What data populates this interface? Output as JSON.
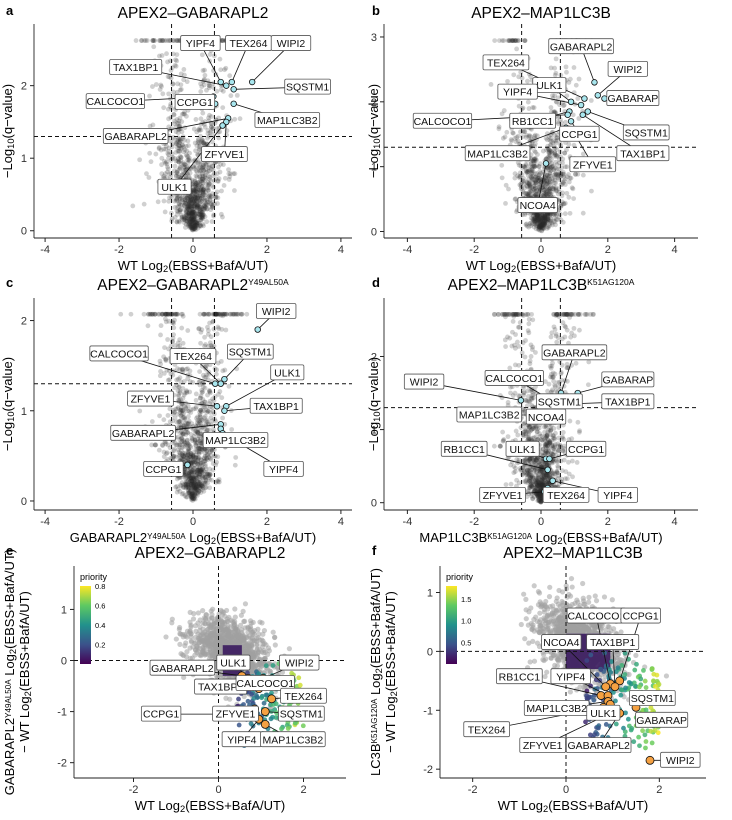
{
  "figure": {
    "panels": [
      {
        "letter": "a",
        "title": "APEX2–GABARAPL2",
        "title_sup": "",
        "xlabel_parts": [
          "WT Log",
          "2",
          "(EBSS+BafA/UT)"
        ],
        "ylabel_parts": [
          "−Log",
          "10",
          "(q−value)"
        ]
      },
      {
        "letter": "b",
        "title": "APEX2–MAP1LC3B",
        "title_sup": "",
        "xlabel_parts": [
          "WT Log",
          "2",
          "(EBSS+BafA/UT)"
        ],
        "ylabel_parts": [
          "−Log",
          "10",
          "(q−value)"
        ]
      },
      {
        "letter": "c",
        "title": "APEX2–GABARAPL2",
        "title_sup": "Y49AL50A",
        "xlabel_parts": [
          "GABARAPL2",
          "Y49AL50A",
          " Log",
          "2",
          "(EBSS+BafA/UT)"
        ],
        "ylabel_parts": [
          "−Log",
          "10",
          "(q−value)"
        ]
      },
      {
        "letter": "d",
        "title": "APEX2–MAP1LC3B",
        "title_sup": "K51AG120A",
        "xlabel_parts": [
          "MAP1LC3B",
          "K51AG120A",
          " Log",
          "2",
          "(EBSS+BafA/UT)"
        ],
        "ylabel_parts": [
          "−Log",
          "10",
          "(q−value)"
        ]
      },
      {
        "letter": "e",
        "title": "APEX2–GABARAPL2",
        "title_sup": "",
        "xlabel_parts": [
          "WT Log",
          "2",
          "(EBSS+BafA/UT)"
        ],
        "ylabel_line1": [
          "GABARAPL2",
          "Y49AL50A",
          " Log",
          "2",
          "(EBSS+BafA/UT)"
        ],
        "ylabel_line2": [
          "− WT Log",
          "2",
          "(EBSS+BafA/UT)"
        ],
        "legend_title": "priority",
        "legend_ticks": [
          "0.8",
          "0.6",
          "0.4",
          "0.2"
        ]
      },
      {
        "letter": "f",
        "title": "APEX2–MAP1LC3B",
        "title_sup": "",
        "xlabel_parts": [
          "WT Log",
          "2",
          "(EBSS+BafA/UT)"
        ],
        "ylabel_line1": [
          "LC3B",
          "K51AG120A",
          " Log",
          "2",
          "(EBSS+BafA/UT)"
        ],
        "ylabel_line2": [
          "− WT Log",
          "2",
          "(EBSS+BafA/UT)"
        ],
        "legend_title": "priority",
        "legend_ticks": [
          "1.5",
          "1.0",
          "0.5"
        ]
      }
    ]
  },
  "chart_data": [
    {
      "panel": "a",
      "type": "scatter",
      "xlim": [
        -4.3,
        4.3
      ],
      "ylim": [
        -0.1,
        2.85
      ],
      "x_ticks": [
        "-4",
        "-2",
        "0",
        "2",
        "4"
      ],
      "x_tick_values": [
        -4,
        -2,
        0,
        2,
        4
      ],
      "y_ticks": [
        "0",
        "1",
        "2"
      ],
      "y_tick_values": [
        0,
        1,
        2
      ],
      "h_line": 1.3,
      "v_lines": [
        -0.58,
        0.58
      ],
      "cloud_seed": 11,
      "highlighted": [
        {
          "name": "YIPF4",
          "x": 0.75,
          "y": 2.05,
          "lx": 0.2,
          "ly": 2.58
        },
        {
          "name": "TEX264",
          "x": 1.05,
          "y": 2.05,
          "lx": 1.5,
          "ly": 2.58
        },
        {
          "name": "WIPI2",
          "x": 1.6,
          "y": 2.05,
          "lx": 2.65,
          "ly": 2.58
        },
        {
          "name": "TAX1BP1",
          "x": 0.9,
          "y": 2.0,
          "lx": -1.55,
          "ly": 2.25
        },
        {
          "name": "SQSTM1",
          "x": 1.1,
          "y": 1.95,
          "lx": 3.1,
          "ly": 1.98
        },
        {
          "name": "CALCOCO1",
          "x": 0.55,
          "y": 1.85,
          "lx": -2.1,
          "ly": 1.78
        },
        {
          "name": "CCPG1",
          "x": 0.6,
          "y": 1.75,
          "lx": 0.05,
          "ly": 1.77
        },
        {
          "name": "MAP1LC3B2",
          "x": 1.1,
          "y": 1.75,
          "lx": 2.55,
          "ly": 1.52
        },
        {
          "name": "GABARAPL2",
          "x": 0.95,
          "y": 1.55,
          "lx": -1.55,
          "ly": 1.3
        },
        {
          "name": "ZFYVE1",
          "x": 0.9,
          "y": 1.5,
          "lx": 0.85,
          "ly": 1.05
        },
        {
          "name": "ULK1",
          "x": 0.8,
          "y": 1.45,
          "lx": -0.5,
          "ly": 0.6
        }
      ]
    },
    {
      "panel": "b",
      "type": "scatter",
      "xlim": [
        -4.7,
        4.7
      ],
      "ylim": [
        -0.1,
        3.2
      ],
      "x_ticks": [
        "-4",
        "-2",
        "0",
        "2",
        "4"
      ],
      "x_tick_values": [
        -4,
        -2,
        0,
        2,
        4
      ],
      "y_ticks": [
        "0",
        "1",
        "2",
        "3"
      ],
      "y_tick_values": [
        0,
        1,
        2,
        3
      ],
      "h_line": 1.3,
      "v_lines": [
        -0.58,
        0.58
      ],
      "cloud_seed": 23,
      "highlighted": [
        {
          "name": "GABARAPL2",
          "x": 1.6,
          "y": 2.3,
          "lx": 1.2,
          "ly": 2.85
        },
        {
          "name": "TEX264",
          "x": 1.3,
          "y": 2.05,
          "lx": -1.05,
          "ly": 2.6
        },
        {
          "name": "WIPI2",
          "x": 1.7,
          "y": 2.1,
          "lx": 2.6,
          "ly": 2.5
        },
        {
          "name": "ULK1",
          "x": 0.9,
          "y": 2.0,
          "lx": 0.25,
          "ly": 2.25
        },
        {
          "name": "YIPF4",
          "x": 1.2,
          "y": 1.95,
          "lx": -0.7,
          "ly": 2.15
        },
        {
          "name": "GABARAP",
          "x": 1.9,
          "y": 2.05,
          "lx": 2.75,
          "ly": 2.05
        },
        {
          "name": "RB1CC1",
          "x": 0.85,
          "y": 1.85,
          "lx": -0.25,
          "ly": 1.7
        },
        {
          "name": "CALCOCO1",
          "x": 0.8,
          "y": 1.8,
          "lx": -2.95,
          "ly": 1.7
        },
        {
          "name": "SQSTM1",
          "x": 1.4,
          "y": 1.85,
          "lx": 3.15,
          "ly": 1.52
        },
        {
          "name": "CCPG1",
          "x": 0.9,
          "y": 1.7,
          "lx": 1.15,
          "ly": 1.5
        },
        {
          "name": "TAX1BP1",
          "x": 1.25,
          "y": 1.8,
          "lx": 3.05,
          "ly": 1.2
        },
        {
          "name": "MAP1LC3B2",
          "x": 0.75,
          "y": 1.6,
          "lx": -1.3,
          "ly": 1.2
        },
        {
          "name": "ZFYVE1",
          "x": 0.95,
          "y": 1.55,
          "lx": 1.55,
          "ly": 1.03
        },
        {
          "name": "NCOA4",
          "x": 0.15,
          "y": 1.05,
          "lx": -0.1,
          "ly": 0.4
        }
      ]
    },
    {
      "panel": "c",
      "type": "scatter",
      "xlim": [
        -4.3,
        4.3
      ],
      "ylim": [
        -0.1,
        2.25
      ],
      "x_ticks": [
        "-4",
        "-2",
        "0",
        "2",
        "4"
      ],
      "x_tick_values": [
        -4,
        -2,
        0,
        2,
        4
      ],
      "y_ticks": [
        "0",
        "1",
        "2"
      ],
      "y_tick_values": [
        0,
        1,
        2
      ],
      "h_line": 1.3,
      "v_lines": [
        -0.58,
        0.58
      ],
      "cloud_seed": 37,
      "highlighted": [
        {
          "name": "WIPI2",
          "x": 1.75,
          "y": 1.9,
          "lx": 2.25,
          "ly": 2.1
        },
        {
          "name": "CALCOCO1",
          "x": 0.6,
          "y": 1.3,
          "lx": -2.0,
          "ly": 1.63
        },
        {
          "name": "TEX264",
          "x": 0.75,
          "y": 1.3,
          "lx": 0.0,
          "ly": 1.6
        },
        {
          "name": "SQSTM1",
          "x": 0.85,
          "y": 1.35,
          "lx": 1.55,
          "ly": 1.65
        },
        {
          "name": "ULK1",
          "x": 0.9,
          "y": 1.05,
          "lx": 2.55,
          "ly": 1.42
        },
        {
          "name": "ZFYVE1",
          "x": 0.65,
          "y": 1.05,
          "lx": -1.15,
          "ly": 1.13
        },
        {
          "name": "TAX1BP1",
          "x": 0.85,
          "y": 1.0,
          "lx": 2.25,
          "ly": 1.05
        },
        {
          "name": "GABARAPL2",
          "x": 0.75,
          "y": 0.85,
          "lx": -1.35,
          "ly": 0.75
        },
        {
          "name": "MAP1LC3B2",
          "x": 0.75,
          "y": 0.8,
          "lx": 1.15,
          "ly": 0.67
        },
        {
          "name": "CCPG1",
          "x": -0.15,
          "y": 0.4,
          "lx": -0.8,
          "ly": 0.35
        },
        {
          "name": "YIPF4",
          "x": 0.8,
          "y": 0.75,
          "lx": 2.45,
          "ly": 0.35
        }
      ]
    },
    {
      "panel": "d",
      "type": "scatter",
      "xlim": [
        -4.7,
        4.7
      ],
      "ylim": [
        -0.1,
        2.8
      ],
      "x_ticks": [
        "-4",
        "-2",
        "0",
        "2",
        "4"
      ],
      "x_tick_values": [
        -4,
        -2,
        0,
        2,
        4
      ],
      "y_ticks": [
        "0",
        "1",
        "2"
      ],
      "y_tick_values": [
        0,
        1,
        2
      ],
      "h_line": 1.3,
      "v_lines": [
        -0.58,
        0.58
      ],
      "cloud_seed": 41,
      "highlighted": [
        {
          "name": "GABARAPL2",
          "x": 0.6,
          "y": 1.5,
          "lx": 1.0,
          "ly": 2.05
        },
        {
          "name": "GABARAP",
          "x": 1.1,
          "y": 1.5,
          "lx": 2.6,
          "ly": 1.68
        },
        {
          "name": "WIPI2",
          "x": -0.6,
          "y": 1.4,
          "lx": -3.5,
          "ly": 1.65
        },
        {
          "name": "CALCOCO1",
          "x": 0.5,
          "y": 1.35,
          "lx": -0.8,
          "ly": 1.7
        },
        {
          "name": "SQSTM1",
          "x": 0.2,
          "y": 1.3,
          "lx": 0.55,
          "ly": 1.38
        },
        {
          "name": "TAX1BP1",
          "x": 0.75,
          "y": 1.35,
          "lx": 2.6,
          "ly": 1.38
        },
        {
          "name": "MAP1LC3B2",
          "x": 0.25,
          "y": 1.2,
          "lx": -1.55,
          "ly": 1.2
        },
        {
          "name": "NCOA4",
          "x": 0.05,
          "y": 1.15,
          "lx": 0.15,
          "ly": 1.17
        },
        {
          "name": "RB1CC1",
          "x": 0.2,
          "y": 0.45,
          "lx": -2.3,
          "ly": 0.73
        },
        {
          "name": "ULK1",
          "x": 0.15,
          "y": 0.6,
          "lx": -0.55,
          "ly": 0.73
        },
        {
          "name": "CCPG1",
          "x": 0.25,
          "y": 0.6,
          "lx": 1.35,
          "ly": 0.73
        },
        {
          "name": "ZFYVE1",
          "x": 0.1,
          "y": 0.15,
          "lx": -1.15,
          "ly": 0.1
        },
        {
          "name": "TEX264",
          "x": 0.2,
          "y": 0.2,
          "lx": 0.75,
          "ly": 0.1
        },
        {
          "name": "YIPF4",
          "x": 0.35,
          "y": 0.3,
          "lx": 2.3,
          "ly": 0.1
        }
      ]
    },
    {
      "panel": "e",
      "type": "scatter",
      "xlim": [
        -3.4,
        3.0
      ],
      "ylim": [
        -2.3,
        1.85
      ],
      "x_ticks": [
        "-2",
        "0",
        "2"
      ],
      "x_tick_values": [
        -2,
        0,
        2
      ],
      "y_ticks": [
        "1",
        "0",
        "-1",
        "-2"
      ],
      "y_tick_values": [
        1,
        0,
        -1,
        -2
      ],
      "h_line": 0,
      "v_lines": [
        0
      ],
      "cloud_seed": 53,
      "priority_range": [
        0,
        0.8
      ],
      "highlighted": [
        {
          "name": "ULK1",
          "x": 0.7,
          "y": -0.35,
          "lx": 0.35,
          "ly": -0.05
        },
        {
          "name": "WIPI2",
          "x": 1.05,
          "y": -0.35,
          "lx": 1.9,
          "ly": -0.05
        },
        {
          "name": "GABARAPL2",
          "x": 0.55,
          "y": -0.3,
          "lx": -0.85,
          "ly": -0.15
        },
        {
          "name": "TAX1BP1",
          "x": 0.8,
          "y": -0.5,
          "lx": 0.05,
          "ly": -0.52
        },
        {
          "name": "CALCOCO1",
          "x": 0.95,
          "y": -0.55,
          "lx": 1.1,
          "ly": -0.45
        },
        {
          "name": "TEX264",
          "x": 1.25,
          "y": -0.75,
          "lx": 2.0,
          "ly": -0.7
        },
        {
          "name": "CCPG1",
          "x": 0.6,
          "y": -1.05,
          "lx": -1.35,
          "ly": -1.05
        },
        {
          "name": "ZFYVE1",
          "x": 0.85,
          "y": -0.95,
          "lx": 0.4,
          "ly": -1.05
        },
        {
          "name": "SQSTM1",
          "x": 1.1,
          "y": -1.0,
          "lx": 1.95,
          "ly": -1.05
        },
        {
          "name": "YIPF4",
          "x": 0.95,
          "y": -1.15,
          "lx": 0.55,
          "ly": -1.55
        },
        {
          "name": "MAP1LC3B2",
          "x": 1.1,
          "y": -1.25,
          "lx": 1.75,
          "ly": -1.55
        }
      ]
    },
    {
      "panel": "f",
      "type": "scatter",
      "xlim": [
        -2.7,
        3.0
      ],
      "ylim": [
        -2.15,
        1.45
      ],
      "x_ticks": [
        "-2",
        "0",
        "2"
      ],
      "x_tick_values": [
        -2,
        0,
        2
      ],
      "y_ticks": [
        "1",
        "0",
        "-1",
        "-2"
      ],
      "y_tick_values": [
        1,
        0,
        -1,
        -2
      ],
      "h_line": 0,
      "v_lines": [
        0
      ],
      "cloud_seed": 67,
      "priority_range": [
        0,
        1.8
      ],
      "highlighted": [
        {
          "name": "CALCOCO1",
          "x": 0.95,
          "y": -0.55,
          "lx": 0.65,
          "ly": 0.6
        },
        {
          "name": "CCPG1",
          "x": 1.15,
          "y": -0.5,
          "lx": 1.6,
          "ly": 0.6
        },
        {
          "name": "NCOA4",
          "x": 0.85,
          "y": -0.6,
          "lx": -0.1,
          "ly": 0.15
        },
        {
          "name": "TAX1BP1",
          "x": 1.05,
          "y": -0.6,
          "lx": 1.0,
          "ly": 0.15
        },
        {
          "name": "RB1CC1",
          "x": 0.75,
          "y": -0.75,
          "lx": -1.0,
          "ly": -0.43
        },
        {
          "name": "YIPF4",
          "x": 0.9,
          "y": -0.75,
          "lx": 0.1,
          "ly": -0.43
        },
        {
          "name": "SQSTM1",
          "x": 1.5,
          "y": -0.95,
          "lx": 1.85,
          "ly": -0.8
        },
        {
          "name": "MAP1LC3B2",
          "x": 0.9,
          "y": -0.85,
          "lx": -0.2,
          "ly": -0.97
        },
        {
          "name": "ULK1",
          "x": 0.95,
          "y": -0.9,
          "lx": 0.8,
          "ly": -1.05
        },
        {
          "name": "GABARAP",
          "x": 1.6,
          "y": -1.1,
          "lx": 2.05,
          "ly": -1.17
        },
        {
          "name": "TEX264",
          "x": 0.8,
          "y": -0.95,
          "lx": -1.7,
          "ly": -1.33
        },
        {
          "name": "ZFYVE1",
          "x": 0.95,
          "y": -1.05,
          "lx": -0.5,
          "ly": -1.6
        },
        {
          "name": "GABARAPL2",
          "x": 1.15,
          "y": -1.05,
          "lx": 0.7,
          "ly": -1.6
        },
        {
          "name": "WIPI2",
          "x": 1.8,
          "y": -1.85,
          "lx": 2.45,
          "ly": -1.85
        }
      ]
    }
  ]
}
